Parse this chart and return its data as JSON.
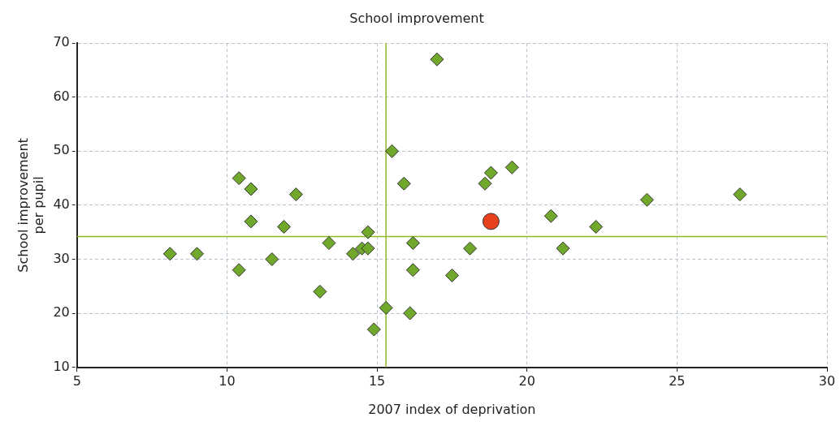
{
  "chart_data": {
    "type": "scatter",
    "title": "School improvement",
    "xlabel": "2007 index of deprivation",
    "ylabel": "School improvement per pupil",
    "xlim": [
      5,
      30
    ],
    "xticks": [
      5,
      10,
      15,
      20,
      25,
      30
    ],
    "ylim": [
      10,
      70
    ],
    "yticks": [
      10,
      20,
      30,
      40,
      50,
      60,
      70
    ],
    "grid": true,
    "marker": "diamond",
    "series": [
      {
        "color": "#6fa82a",
        "x": [
          8.1,
          9.0,
          10.4,
          10.8,
          10.8,
          10.4,
          11.5,
          11.9,
          12.3,
          13.1,
          13.4,
          14.2,
          14.5,
          14.7,
          14.7,
          14.9,
          15.3,
          15.5,
          15.9,
          16.1,
          16.2,
          16.2,
          17.0,
          17.5,
          18.1,
          18.6,
          18.8,
          19.5,
          20.8,
          21.2,
          22.3,
          24.0,
          27.1
        ],
        "values": [
          31,
          31,
          45,
          43,
          37,
          28,
          30,
          36,
          42,
          24,
          33,
          31,
          32,
          35,
          32,
          17,
          21,
          50,
          44,
          20,
          33,
          28,
          67,
          27,
          32,
          44,
          46,
          47,
          38,
          32,
          36,
          41,
          42
        ]
      },
      {
        "color": "#e8401c",
        "marker": "circle",
        "x": [
          18.8
        ],
        "values": [
          37
        ]
      }
    ],
    "ref_lines": [
      {
        "axis": "x",
        "value": 15.3,
        "color": "#8fb82a"
      },
      {
        "axis": "y",
        "value": 34.2,
        "color": "#8fb82a"
      }
    ]
  }
}
